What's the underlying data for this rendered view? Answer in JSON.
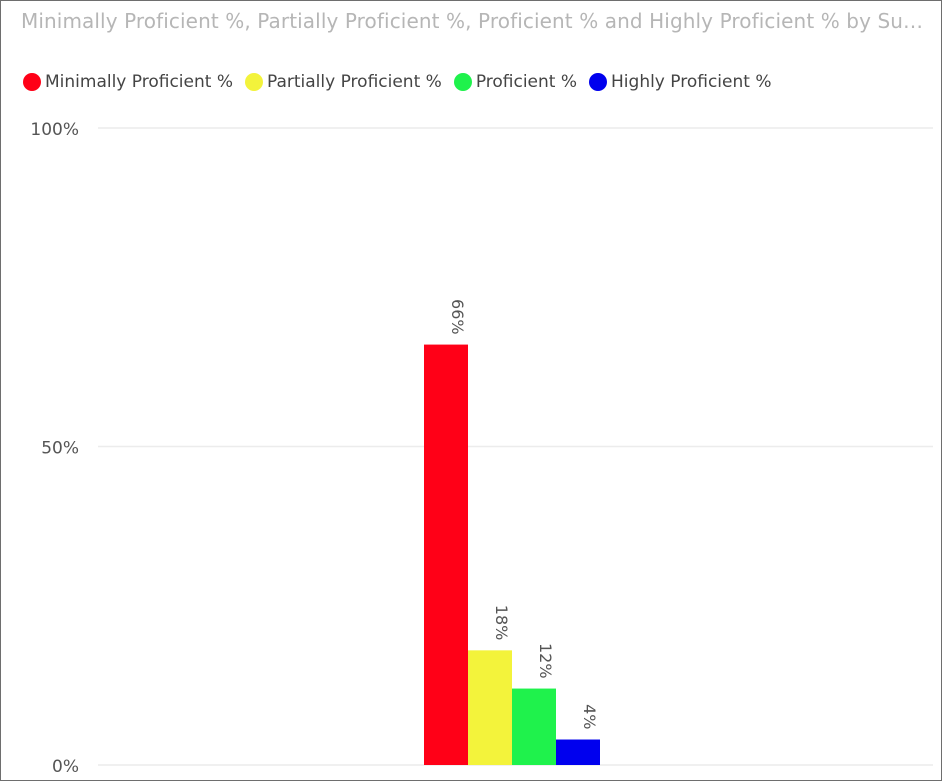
{
  "chart_data": {
    "type": "bar",
    "title": "Minimally Proficient %, Partially Proficient %, Proficient % and Highly Proficient % by Subject",
    "categories": [
      ""
    ],
    "series": [
      {
        "name": "Minimally Proficient %",
        "values": [
          66
        ],
        "label": "66%",
        "color": "#ff0017"
      },
      {
        "name": "Partially Proficient %",
        "values": [
          18
        ],
        "label": "18%",
        "color": "#f3f33b"
      },
      {
        "name": "Proficient %",
        "values": [
          12
        ],
        "label": "12%",
        "color": "#1ff24c"
      },
      {
        "name": "Highly Proficient %",
        "values": [
          4
        ],
        "label": "4%",
        "color": "#0000ee"
      }
    ],
    "ylim": [
      0,
      100
    ],
    "yticks": [
      {
        "value": 0,
        "label": "0%"
      },
      {
        "value": 50,
        "label": "50%"
      },
      {
        "value": 100,
        "label": "100%"
      }
    ],
    "grid": true,
    "legend_position": "top-left"
  }
}
